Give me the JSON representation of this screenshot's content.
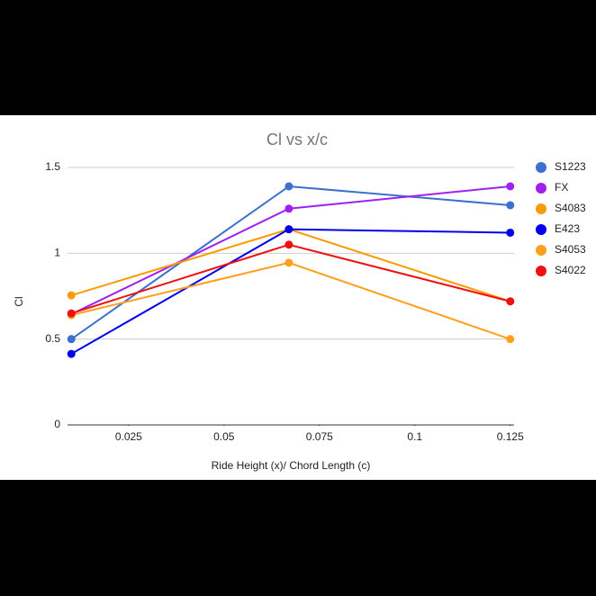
{
  "chart_data": {
    "type": "line",
    "title": "Cl vs x/c",
    "x_label": "Ride Height (x)/ Chord Length (c)",
    "y_label": "Cl",
    "x": [
      0.01,
      0.067,
      0.125
    ],
    "series": [
      {
        "name": "S1223",
        "color": "#3d6fcc",
        "values": [
          0.5,
          1.39,
          1.28
        ]
      },
      {
        "name": "FX",
        "color": "#a020f0",
        "values": [
          0.645,
          1.26,
          1.39
        ]
      },
      {
        "name": "S4083",
        "color": "#ff9900",
        "values": [
          0.755,
          1.14,
          0.72
        ]
      },
      {
        "name": "E423",
        "color": "#0000ee",
        "values": [
          0.414,
          1.14,
          1.12
        ]
      },
      {
        "name": "S4053",
        "color": "#ff9f1c",
        "values": [
          0.64,
          0.945,
          0.5
        ]
      },
      {
        "name": "S4022",
        "color": "#ee1111",
        "values": [
          0.65,
          1.05,
          0.72
        ]
      }
    ],
    "xlim": [
      0.009,
      0.126
    ],
    "xticks": [
      0.025,
      0.05,
      0.075,
      0.1,
      0.125
    ],
    "ylim": [
      0,
      1.5
    ],
    "yticks": [
      0,
      0.5,
      1,
      1.5
    ],
    "grid": true,
    "legend": "right"
  }
}
